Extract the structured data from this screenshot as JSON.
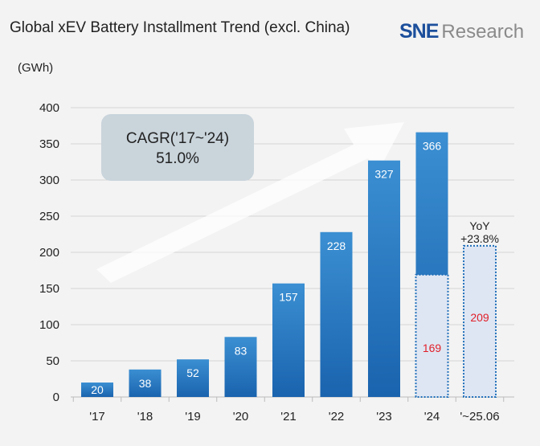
{
  "title": "Global xEV Battery Installment Trend (excl. China)",
  "unit": "(GWh)",
  "logo": {
    "brand": "SNE",
    "suffix": "Research"
  },
  "colors": {
    "bar": "#1f6fba",
    "forecast_fill": "#dfe6f3",
    "forecast_border": "#1f6fba",
    "forecast_label": "#e0202a",
    "background": "#f3f3f3"
  },
  "chart_data": {
    "type": "bar",
    "categories": [
      "'17",
      "'18",
      "'19",
      "'20",
      "'21",
      "'22",
      "'23",
      "'24",
      "'~25.06"
    ],
    "values": [
      20,
      38,
      52,
      83,
      157,
      228,
      327,
      366,
      209
    ],
    "partial_values": {
      "'24": 169,
      "'~25.06": 209
    },
    "ylim": [
      0,
      400
    ],
    "yticks": [
      0,
      50,
      100,
      150,
      200,
      250,
      300,
      350,
      400
    ],
    "grid": true,
    "annotations": {
      "cagr_label": "CAGR('17~'24)",
      "cagr_value": "51.0%",
      "yoy_label": "YoY",
      "yoy_value": "+23.8%"
    }
  }
}
